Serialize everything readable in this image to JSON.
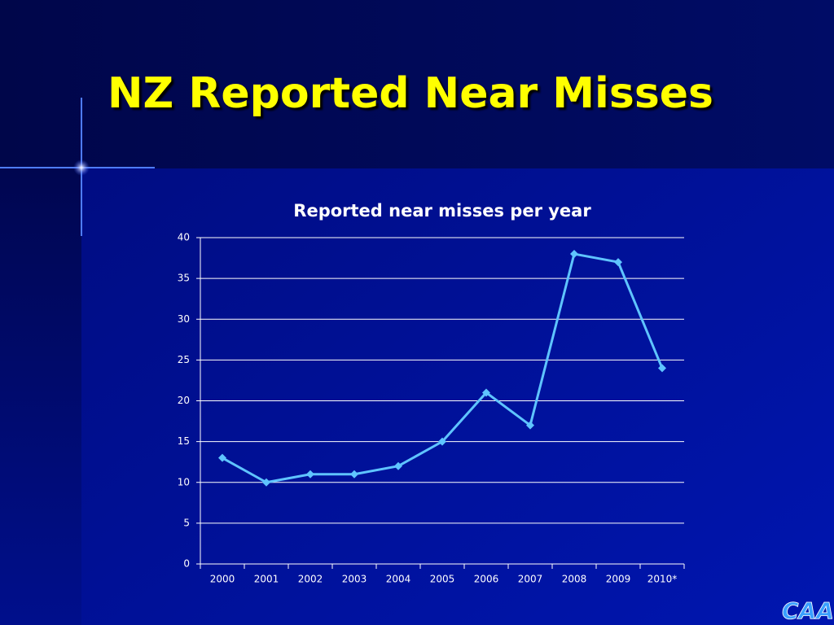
{
  "slide_title": "NZ Reported Near Misses",
  "logo": "CAA",
  "chart_data": {
    "type": "line",
    "title": "Reported near misses per year",
    "categories": [
      "2000",
      "2001",
      "2002",
      "2003",
      "2004",
      "2005",
      "2006",
      "2007",
      "2008",
      "2009",
      "2010*"
    ],
    "values": [
      13,
      10,
      11,
      11,
      12,
      15,
      21,
      17,
      38,
      37,
      24
    ],
    "color": "#5fc4ff",
    "ylim": [
      0,
      40
    ],
    "yticks": [
      0,
      5,
      10,
      15,
      20,
      25,
      30,
      35,
      40
    ],
    "grid": true
  }
}
